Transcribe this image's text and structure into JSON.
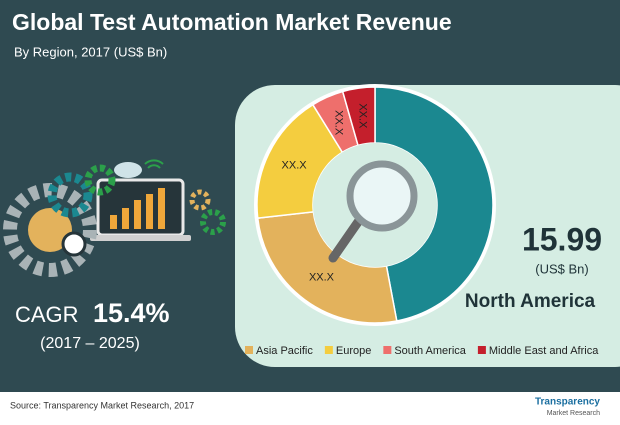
{
  "header": {
    "title": "Global Test Automation Market Revenue",
    "subtitle": "By Region, 2017 (US$ Bn)"
  },
  "chart_data": {
    "type": "donut",
    "categories": [
      "North America",
      "Asia Pacific",
      "Europe",
      "South America",
      "Middle East and Africa"
    ],
    "values": [
      15.99,
      8.9,
      6.1,
      1.5,
      1.5
    ],
    "value_labels": [
      "15.99",
      "XX.X",
      "XX.X",
      "XX.X",
      "XX.X"
    ],
    "colors": [
      "#1b8890",
      "#e3b25c",
      "#f4cd3f",
      "#ee6f6c",
      "#c41f2c"
    ],
    "unit": "(US$ Bn)"
  },
  "cagr": {
    "label": "CAGR",
    "value": "15.4%",
    "period": "(2017 – 2025)"
  },
  "source": "Source: Transparency Market Research, 2017",
  "logo": {
    "line1": "Transparency",
    "line2": "Market Research"
  }
}
